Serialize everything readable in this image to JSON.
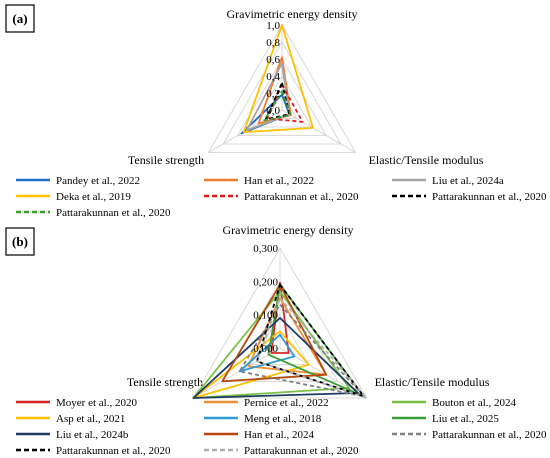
{
  "panels": [
    {
      "tag": "(a)",
      "axes": [
        "Gravimetric energy density",
        "Elastic/Tensile modulus",
        "Tensile strength"
      ],
      "ticks": [
        "0,0",
        "0,2",
        "0,4",
        "0,6",
        "0,8",
        "1,0"
      ],
      "legend": [
        {
          "label": "Pandey et al., 2022",
          "color": "#1f6fc4",
          "dash": "solid"
        },
        {
          "label": "Han et al., 2022",
          "color": "#ed7d31",
          "dash": "solid"
        },
        {
          "label": "Liu et al., 2024a",
          "color": "#a5a5a5",
          "dash": "solid"
        },
        {
          "label": "Deka et al., 2019",
          "color": "#ffc000",
          "dash": "solid"
        },
        {
          "label": "Pattarakunnan et al., 2020",
          "color": "#e31a1c",
          "dash": "dashed"
        },
        {
          "label": "Pattarakunnan et al., 2020",
          "color": "#000000",
          "dash": "dashed"
        },
        {
          "label": "Pattarakunnan et al., 2020",
          "color": "#33a02c",
          "dash": "dashed"
        }
      ]
    },
    {
      "tag": "(b)",
      "axes": [
        "Gravimetric energy density",
        "Elastic/Tensile modulus",
        "Tensile strength"
      ],
      "ticks": [
        "0,000",
        "0,100",
        "0,200",
        "0,300"
      ],
      "legend": [
        {
          "label": "Moyer et al., 2020",
          "color": "#d62728",
          "dash": "solid"
        },
        {
          "label": "Pernice et al., 2022",
          "color": "#f0913a",
          "dash": "solid"
        },
        {
          "label": "Bouton et al., 2024",
          "color": "#7ac143",
          "dash": "solid"
        },
        {
          "label": "Asp et al., 2021",
          "color": "#ffc000",
          "dash": "solid"
        },
        {
          "label": "Meng et al., 2018",
          "color": "#2e9bd6",
          "dash": "solid"
        },
        {
          "label": "Liu et al., 2025",
          "color": "#3a9d35",
          "dash": "solid"
        },
        {
          "label": "Liu et al., 2024b",
          "color": "#1f3b63",
          "dash": "solid"
        },
        {
          "label": "Han et al., 2024",
          "color": "#b5490e",
          "dash": "solid"
        },
        {
          "label": "Pattarakunnan et al., 2020",
          "color": "#7f7f7f",
          "dash": "dashed"
        },
        {
          "label": "Pattarakunnan et al., 2020",
          "color": "#000000",
          "dash": "dashed"
        },
        {
          "label": "Pattarakunnan et al., 2020",
          "color": "#b0b0b0",
          "dash": "dashed"
        }
      ]
    }
  ],
  "chart_data": [
    {
      "type": "radar",
      "panel": "(a)",
      "axes": [
        "Gravimetric energy density",
        "Elastic/Tensile modulus",
        "Tensile strength"
      ],
      "range": [
        0,
        1.0
      ],
      "grid": true,
      "legend_position": "bottom",
      "series": [
        {
          "name": "Pandey et al., 2022",
          "values": [
            0.18,
            0.1,
            0.55
          ]
        },
        {
          "name": "Han et al., 2022",
          "values": [
            0.62,
            0.12,
            0.32
          ]
        },
        {
          "name": "Liu et al., 2024a",
          "values": [
            0.55,
            0.1,
            0.48
          ]
        },
        {
          "name": "Deka et al., 2019",
          "values": [
            1.0,
            0.42,
            0.52
          ]
        },
        {
          "name": "Pattarakunnan et al., 2020",
          "values": [
            0.3,
            0.28,
            0.2
          ]
        },
        {
          "name": "Pattarakunnan et al., 2020",
          "values": [
            0.32,
            0.1,
            0.22
          ]
        },
        {
          "name": "Pattarakunnan et al., 2020",
          "values": [
            0.22,
            0.12,
            0.24
          ]
        }
      ]
    },
    {
      "type": "radar",
      "panel": "(b)",
      "axes": [
        "Gravimetric energy density",
        "Elastic/Tensile modulus",
        "Tensile strength"
      ],
      "range": [
        0,
        0.3
      ],
      "grid": true,
      "legend_position": "bottom",
      "series": [
        {
          "name": "Moyer et al., 2020",
          "values": [
            0.196,
            0.03,
            0.03
          ]
        },
        {
          "name": "Pernice et al., 2022",
          "values": [
            0.15,
            0.16,
            0.11
          ]
        },
        {
          "name": "Bouton et al., 2024",
          "values": [
            0.17,
            0.24,
            0.3
          ]
        },
        {
          "name": "Asp et al., 2021",
          "values": [
            0.05,
            0.1,
            0.3
          ]
        },
        {
          "name": "Meng et al., 2018",
          "values": [
            0.04,
            0.05,
            0.14
          ]
        },
        {
          "name": "Liu et al., 2025",
          "values": [
            0.19,
            0.29,
            0.04
          ]
        },
        {
          "name": "Liu et al., 2024b",
          "values": [
            0.09,
            0.27,
            0.3
          ]
        },
        {
          "name": "Han et al., 2024",
          "values": [
            0.19,
            0.16,
            0.2
          ]
        },
        {
          "name": "Pattarakunnan et al., 2020",
          "values": [
            0.13,
            0.29,
            0.14
          ]
        },
        {
          "name": "Pattarakunnan et al., 2020",
          "values": [
            0.19,
            0.29,
            0.08
          ]
        },
        {
          "name": "Pattarakunnan et al., 2020",
          "values": [
            0.15,
            0.3,
            0.08
          ]
        }
      ]
    }
  ]
}
